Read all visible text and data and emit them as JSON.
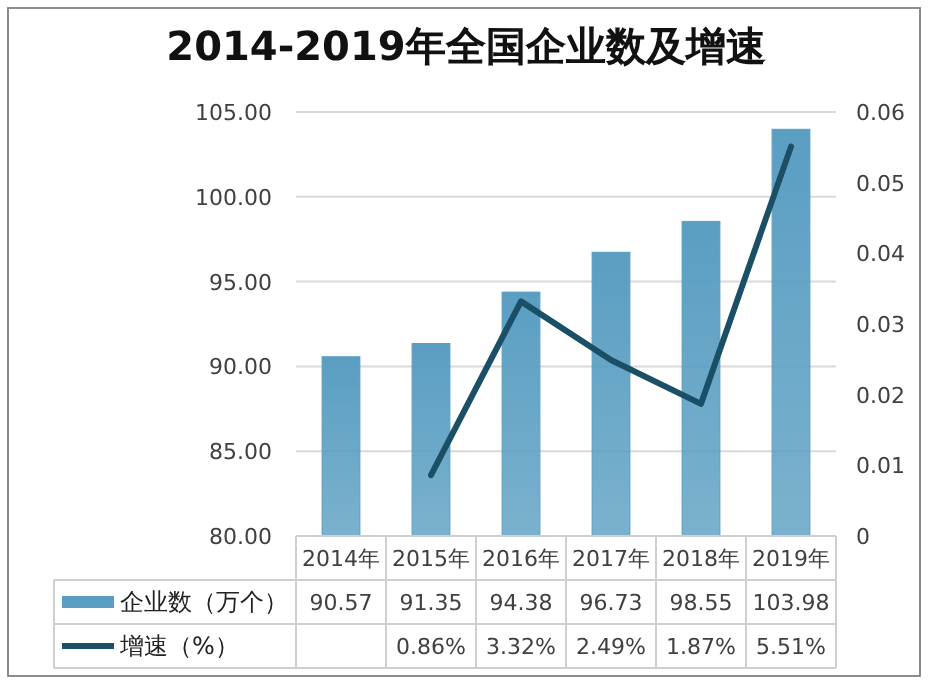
{
  "chart_data": {
    "type": "bar",
    "title": "2014-2019年全国企业数及增速",
    "categories": [
      "2014年",
      "2015年",
      "2016年",
      "2017年",
      "2018年",
      "2019年"
    ],
    "series": [
      {
        "name": "企业数（万个）",
        "color": "#5a9ec2",
        "values": [
          90.57,
          91.35,
          94.38,
          96.73,
          98.55,
          103.98
        ],
        "value_labels": [
          "90.57",
          "91.35",
          "94.38",
          "96.73",
          "98.55",
          "103.98"
        ]
      },
      {
        "name": "增速（%）",
        "type": "line",
        "axis": "y2",
        "color": "#1b4f66",
        "values": [
          null,
          0.0086,
          0.0332,
          0.0249,
          0.0187,
          0.0551
        ],
        "value_labels": [
          null,
          "0.86%",
          "3.32%",
          "2.49%",
          "1.87%",
          "5.51%"
        ]
      }
    ],
    "ylim": [
      80,
      105
    ],
    "yticks": [
      {
        "value": 80,
        "label": "80.00"
      },
      {
        "value": 85,
        "label": "85.00"
      },
      {
        "value": 90,
        "label": "90.00"
      },
      {
        "value": 95,
        "label": "95.00"
      },
      {
        "value": 100,
        "label": "100.00"
      },
      {
        "value": 105,
        "label": "105.00"
      }
    ],
    "y2lim": [
      0,
      0.06
    ],
    "y2ticks": [
      0,
      0.01,
      0.02,
      0.03,
      0.04,
      0.05,
      0.06
    ],
    "grid": "y",
    "legend": "bottom",
    "marker": "none",
    "line_style": "solid"
  }
}
